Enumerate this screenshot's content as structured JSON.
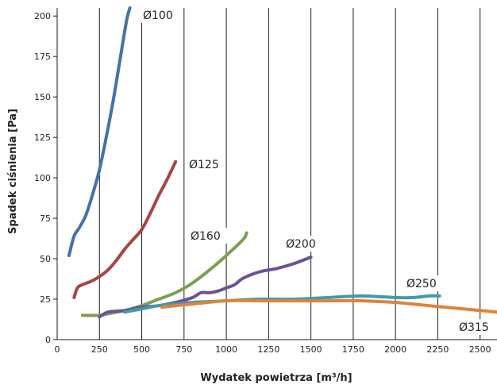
{
  "chart_data": {
    "type": "line",
    "xlabel": "Wydatek powietrza [m³/h]",
    "ylabel": "Spadek ciśnienia [Pa]",
    "xlim": [
      0,
      2600
    ],
    "ylim": [
      0,
      205
    ],
    "x_ticks": [
      "0",
      "250",
      "500",
      "750",
      "1000",
      "1250",
      "1500",
      "1750",
      "2000",
      "2250",
      "2500"
    ],
    "y_ticks": [
      "0",
      "25",
      "50",
      "75",
      "100",
      "125",
      "150",
      "175",
      "200"
    ],
    "grid": "vertical",
    "series": [
      {
        "name": "Ø100",
        "color": "#4472a8",
        "points": [
          [
            70,
            52
          ],
          [
            100,
            64
          ],
          [
            130,
            69
          ],
          [
            170,
            77
          ],
          [
            210,
            90
          ],
          [
            250,
            105
          ],
          [
            290,
            125
          ],
          [
            330,
            147
          ],
          [
            370,
            172
          ],
          [
            410,
            197
          ],
          [
            430,
            205
          ]
        ]
      },
      {
        "name": "Ø125",
        "color": "#a84442",
        "points": [
          [
            100,
            26
          ],
          [
            120,
            32
          ],
          [
            150,
            34
          ],
          [
            200,
            36
          ],
          [
            250,
            39
          ],
          [
            300,
            43
          ],
          [
            350,
            49
          ],
          [
            400,
            56
          ],
          [
            450,
            62
          ],
          [
            500,
            68
          ],
          [
            550,
            78
          ],
          [
            600,
            89
          ],
          [
            650,
            99
          ],
          [
            700,
            110
          ]
        ]
      },
      {
        "name": "Ø160",
        "color": "#79a050",
        "points": [
          [
            150,
            15
          ],
          [
            250,
            15
          ],
          [
            300,
            16
          ],
          [
            400,
            18
          ],
          [
            500,
            21
          ],
          [
            600,
            25
          ],
          [
            700,
            29
          ],
          [
            800,
            35
          ],
          [
            900,
            43
          ],
          [
            1000,
            52
          ],
          [
            1100,
            62
          ],
          [
            1120,
            66
          ]
        ]
      },
      {
        "name": "Ø200",
        "color": "#6a5298",
        "points": [
          [
            250,
            14
          ],
          [
            300,
            17
          ],
          [
            400,
            18
          ],
          [
            500,
            20
          ],
          [
            600,
            21
          ],
          [
            700,
            23
          ],
          [
            800,
            26
          ],
          [
            850,
            29
          ],
          [
            900,
            29
          ],
          [
            950,
            30
          ],
          [
            1000,
            32
          ],
          [
            1050,
            34
          ],
          [
            1100,
            38
          ],
          [
            1200,
            42
          ],
          [
            1300,
            44
          ],
          [
            1400,
            47
          ],
          [
            1500,
            51
          ]
        ]
      },
      {
        "name": "Ø250",
        "color": "#3f9bab",
        "points": [
          [
            400,
            17
          ],
          [
            500,
            19
          ],
          [
            600,
            21
          ],
          [
            700,
            22
          ],
          [
            800,
            23
          ],
          [
            1000,
            24
          ],
          [
            1200,
            25
          ],
          [
            1400,
            25
          ],
          [
            1600,
            26
          ],
          [
            1800,
            27
          ],
          [
            2000,
            26
          ],
          [
            2100,
            26
          ],
          [
            2200,
            27
          ],
          [
            2260,
            27
          ]
        ]
      },
      {
        "name": "Ø315",
        "color": "#e0823a",
        "points": [
          [
            620,
            20
          ],
          [
            700,
            21
          ],
          [
            800,
            22
          ],
          [
            1000,
            24
          ],
          [
            1200,
            24
          ],
          [
            1400,
            24
          ],
          [
            1600,
            24
          ],
          [
            1800,
            24
          ],
          [
            2000,
            23
          ],
          [
            2100,
            22
          ],
          [
            2200,
            21
          ],
          [
            2300,
            20
          ],
          [
            2400,
            19
          ],
          [
            2500,
            18
          ],
          [
            2600,
            17
          ]
        ]
      }
    ]
  }
}
